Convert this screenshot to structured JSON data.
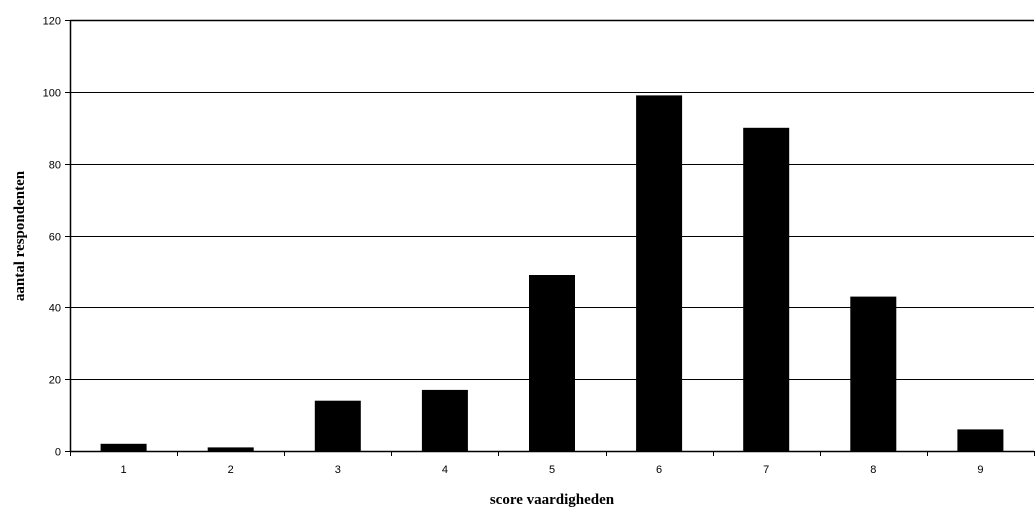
{
  "chart_data": {
    "type": "bar",
    "categories": [
      "1",
      "2",
      "3",
      "4",
      "5",
      "6",
      "7",
      "8",
      "9"
    ],
    "values": [
      2,
      1,
      14,
      17,
      49,
      99,
      90,
      43,
      6
    ],
    "xlabel": "score vaardigheden",
    "ylabel": "aantal respondenten",
    "ylim": [
      0,
      120
    ],
    "yticks": [
      0,
      20,
      40,
      60,
      80,
      100,
      120
    ],
    "grid": true,
    "legend": "none",
    "colors": {
      "bar": "#000000",
      "grid": "#000000",
      "background": "#ffffff"
    }
  }
}
